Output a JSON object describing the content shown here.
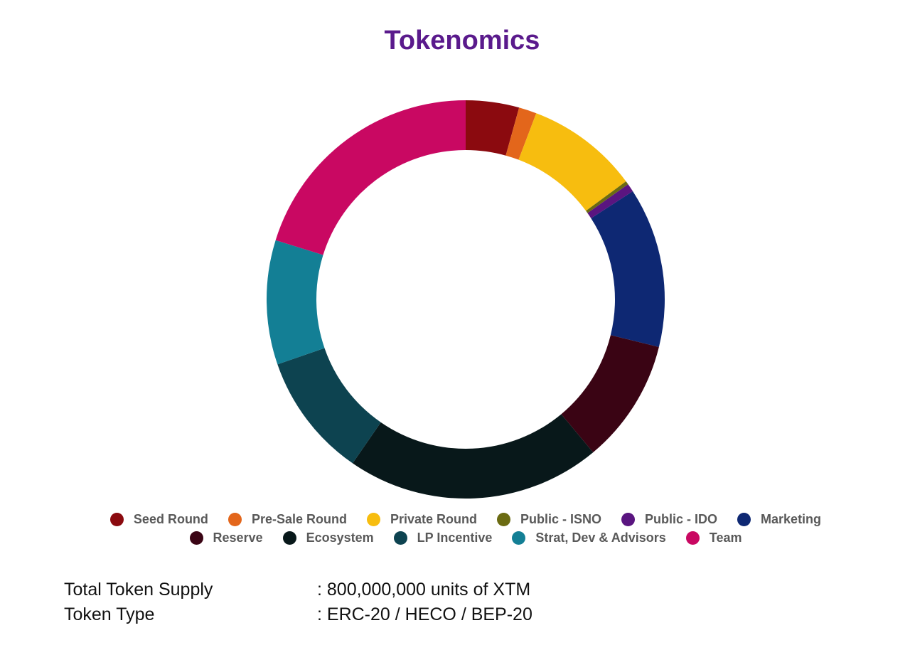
{
  "chart_data": {
    "type": "pie",
    "title": "Tokenomics",
    "donut": true,
    "categories": [
      "Seed Round",
      "Pre-Sale Round",
      "Private Round",
      "Public - ISNO",
      "Public - IDO",
      "Marketing",
      "Reserve",
      "Ecosystem",
      "LP Incentive",
      "Strat, Dev & Advisors",
      "Team"
    ],
    "values": [
      4.5,
      1.5,
      9.5,
      0.3,
      0.7,
      13.5,
      10.5,
      21.5,
      10.5,
      10.5,
      21.0
    ],
    "colors": [
      "#8b0a0f",
      "#e3661b",
      "#f7bd0f",
      "#6b6b12",
      "#5a1580",
      "#0e2873",
      "#3a0414",
      "#08181a",
      "#0d4350",
      "#137f95",
      "#c90862"
    ],
    "legend_position": "bottom"
  },
  "info": {
    "supply_label": "Total Token Supply",
    "supply_value": ": 800,000,000 units of XTM",
    "type_label": "Token Type",
    "type_value": ": ERC-20 / HECO / BEP-20"
  }
}
